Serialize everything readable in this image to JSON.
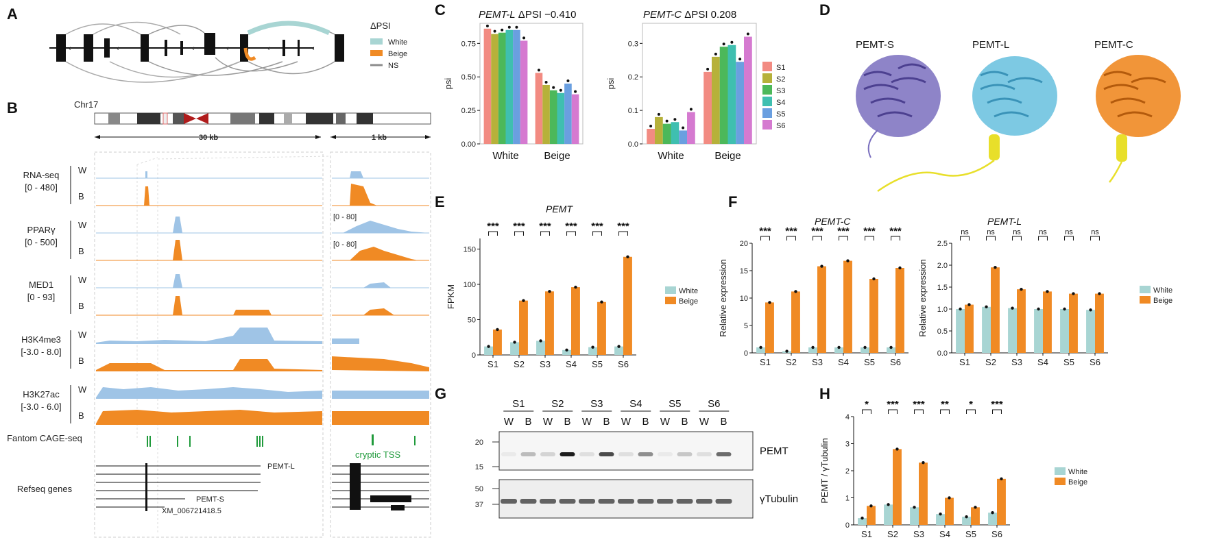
{
  "colors": {
    "white": "#a8d5d3",
    "beige": "#f08a24",
    "ns": "#8c8c8c",
    "rna_white": "#9fc4e6",
    "green": "#1f9a3b",
    "samples": [
      "#f28b82",
      "#b6b13a",
      "#4cb85a",
      "#3fbfb0",
      "#6a9fe0",
      "#d57ad0"
    ],
    "protein_s": "#7a6fbe",
    "protein_l": "#6fc3e0",
    "protein_c": "#f08a24",
    "helix": "#e8df2a"
  },
  "panels": {
    "a": "A",
    "b": "B",
    "c": "C",
    "d": "D",
    "e": "E",
    "f": "F",
    "g": "G",
    "h": "H"
  },
  "panel_a": {
    "legend_title": "ΔPSI",
    "legend": [
      "White",
      "Beige",
      "NS"
    ]
  },
  "panel_b": {
    "chr": "Chr17",
    "scale_left": "30 kb",
    "scale_right": "1 kb",
    "tracks": [
      {
        "name": "RNA-seq",
        "range": "[0 - 480]"
      },
      {
        "name": "PPARγ",
        "range": "[0 - 500]"
      },
      {
        "name": "MED1",
        "range": "[0 - 93]"
      },
      {
        "name": "H3K4me3",
        "range": "[-3.0 - 8.0]"
      },
      {
        "name": "H3K27ac",
        "range": "[-3.0 - 6.0]"
      }
    ],
    "w": "W",
    "b": "B",
    "zoom_range_1": "[0 - 80]",
    "zoom_range_2": "[0 - 80]",
    "cage": "Fantom CAGE-seq",
    "cryptic": "cryptic TSS",
    "refseq": "Refseq genes",
    "gene_l": "PEMT-L",
    "gene_s": "PEMT-S",
    "gene_xm": "XM_006721418.5"
  },
  "panel_c": {
    "title_left_gene": "PEMT-L",
    "title_left_rest": " ΔPSI −0.410",
    "title_right_gene": "PEMT-C",
    "title_right_rest": " ΔPSI 0.208",
    "ylabel": "psi",
    "groups": [
      "White",
      "Beige"
    ],
    "legend": [
      "S1",
      "S2",
      "S3",
      "S4",
      "S5",
      "S6"
    ]
  },
  "panel_d": {
    "labels": [
      "PEMT-S",
      "PEMT-L",
      "PEMT-C"
    ]
  },
  "panel_e": {
    "title": "PEMT",
    "ylabel": "FPKM",
    "legend": [
      "White",
      "Beige"
    ],
    "stars": [
      "***",
      "***",
      "***",
      "***",
      "***",
      "***"
    ]
  },
  "panel_f": {
    "title_c": "PEMT-C",
    "title_l": "PEMT-L",
    "ylabel": "Relative expression",
    "legend": [
      "White",
      "Beige"
    ],
    "stars": [
      "***",
      "***",
      "***",
      "***",
      "***",
      "***"
    ],
    "ns": [
      "ns",
      "ns",
      "ns",
      "ns",
      "ns",
      "ns"
    ]
  },
  "panel_g": {
    "samples": [
      "S1",
      "S2",
      "S3",
      "S4",
      "S5",
      "S6"
    ],
    "wb": [
      "W",
      "B"
    ],
    "mw_top": [
      "20",
      "15"
    ],
    "mw_bottom": [
      "50",
      "37"
    ],
    "band_top": "PEMT",
    "band_bottom": "γTubulin"
  },
  "panel_h": {
    "ylabel": "PEMT / γTubulin",
    "legend": [
      "White",
      "Beige"
    ],
    "stars": [
      "*",
      "***",
      "***",
      "**",
      "*",
      "***"
    ]
  },
  "chart_data": [
    {
      "id": "C-left",
      "type": "bar",
      "title": "PEMT-L ΔPSI −0.410",
      "categories": [
        "White",
        "Beige"
      ],
      "series": [
        {
          "name": "S1",
          "values": [
            0.86,
            0.53
          ]
        },
        {
          "name": "S2",
          "values": [
            0.82,
            0.44
          ]
        },
        {
          "name": "S3",
          "values": [
            0.83,
            0.4
          ]
        },
        {
          "name": "S4",
          "values": [
            0.85,
            0.38
          ]
        },
        {
          "name": "S5",
          "values": [
            0.85,
            0.45
          ]
        },
        {
          "name": "S6",
          "values": [
            0.77,
            0.37
          ]
        }
      ],
      "ylabel": "psi",
      "ylim": [
        0,
        0.9
      ],
      "yticks": [
        0.0,
        0.25,
        0.5,
        0.75
      ]
    },
    {
      "id": "C-right",
      "type": "bar",
      "title": "PEMT-C ΔPSI 0.208",
      "categories": [
        "White",
        "Beige"
      ],
      "series": [
        {
          "name": "S1",
          "values": [
            0.045,
            0.215
          ]
        },
        {
          "name": "S2",
          "values": [
            0.08,
            0.26
          ]
        },
        {
          "name": "S3",
          "values": [
            0.06,
            0.29
          ]
        },
        {
          "name": "S4",
          "values": [
            0.065,
            0.295
          ]
        },
        {
          "name": "S5",
          "values": [
            0.04,
            0.245
          ]
        },
        {
          "name": "S6",
          "values": [
            0.095,
            0.32
          ]
        }
      ],
      "ylabel": "psi",
      "ylim": [
        0,
        0.36
      ],
      "yticks": [
        0.0,
        0.1,
        0.2,
        0.3
      ]
    },
    {
      "id": "E",
      "type": "bar",
      "title": "PEMT",
      "categories": [
        "S1",
        "S2",
        "S3",
        "S4",
        "S5",
        "S6"
      ],
      "series": [
        {
          "name": "White",
          "values": [
            12,
            18,
            20,
            7,
            11,
            12
          ]
        },
        {
          "name": "Beige",
          "values": [
            36,
            77,
            90,
            96,
            75,
            139
          ]
        }
      ],
      "ylabel": "FPKM",
      "ylim": [
        0,
        165
      ],
      "yticks": [
        0,
        50,
        100,
        150
      ]
    },
    {
      "id": "F-left",
      "type": "bar",
      "title": "PEMT-C",
      "categories": [
        "S1",
        "S2",
        "S3",
        "S4",
        "S5",
        "S6"
      ],
      "series": [
        {
          "name": "White",
          "values": [
            1.0,
            0.3,
            1.0,
            1.0,
            1.0,
            1.0
          ]
        },
        {
          "name": "Beige",
          "values": [
            9.2,
            11.2,
            15.8,
            16.8,
            13.5,
            15.5
          ]
        }
      ],
      "ylabel": "Relative expression",
      "ylim": [
        0,
        20
      ],
      "yticks": [
        0,
        5,
        10,
        15,
        20
      ]
    },
    {
      "id": "F-right",
      "type": "bar",
      "title": "PEMT-L",
      "categories": [
        "S1",
        "S2",
        "S3",
        "S4",
        "S5",
        "S6"
      ],
      "series": [
        {
          "name": "White",
          "values": [
            1.0,
            1.05,
            1.02,
            1.0,
            1.0,
            0.98
          ]
        },
        {
          "name": "Beige",
          "values": [
            1.1,
            1.95,
            1.45,
            1.4,
            1.35,
            1.35
          ]
        }
      ],
      "ylabel": "Relative expression",
      "ylim": [
        0,
        2.5
      ],
      "yticks": [
        0.0,
        0.5,
        1.0,
        1.5,
        2.0,
        2.5
      ]
    },
    {
      "id": "H",
      "type": "bar",
      "title": "",
      "categories": [
        "S1",
        "S2",
        "S3",
        "S4",
        "S5",
        "S6"
      ],
      "series": [
        {
          "name": "White",
          "values": [
            0.25,
            0.75,
            0.65,
            0.4,
            0.3,
            0.45
          ]
        },
        {
          "name": "Beige",
          "values": [
            0.7,
            2.8,
            2.3,
            1.0,
            0.65,
            1.7
          ]
        }
      ],
      "ylabel": "PEMT / γTubulin",
      "ylim": [
        0,
        4
      ],
      "yticks": [
        0,
        1,
        2,
        3,
        4
      ]
    }
  ]
}
